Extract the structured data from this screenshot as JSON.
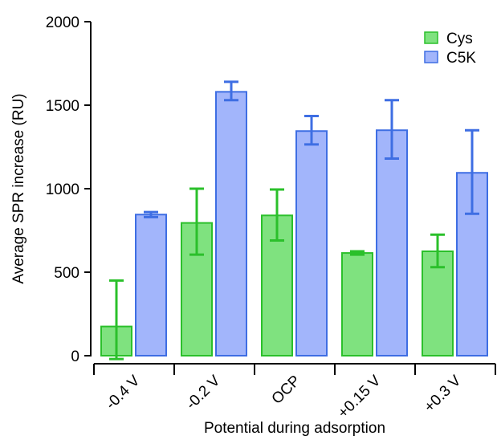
{
  "chart_data": {
    "type": "bar",
    "title": "",
    "xlabel": "Potential during adsorption",
    "ylabel": "Average SPR increase (RU)",
    "ylim": [
      0,
      2000
    ],
    "yticks": [
      0,
      500,
      1000,
      1500,
      2000
    ],
    "categories": [
      "-0.4 V",
      "-0.2 V",
      "OCP",
      "+0.15 V",
      "+0.3 V"
    ],
    "series": [
      {
        "name": "Cys",
        "color": "#7fe27f",
        "edge": "#2bc02b",
        "values": [
          175,
          795,
          840,
          615,
          625
        ],
        "err_low": [
          -20,
          605,
          690,
          605,
          530
        ],
        "err_high": [
          450,
          1000,
          995,
          625,
          725
        ]
      },
      {
        "name": "C5K",
        "color": "#a2b5fb",
        "edge": "#3e6ee3",
        "values": [
          845,
          1580,
          1345,
          1350,
          1095
        ],
        "err_low": [
          830,
          1530,
          1265,
          1180,
          850
        ],
        "err_high": [
          860,
          1640,
          1435,
          1530,
          1350
        ]
      }
    ],
    "legend_position": "top-right",
    "grid": false
  }
}
